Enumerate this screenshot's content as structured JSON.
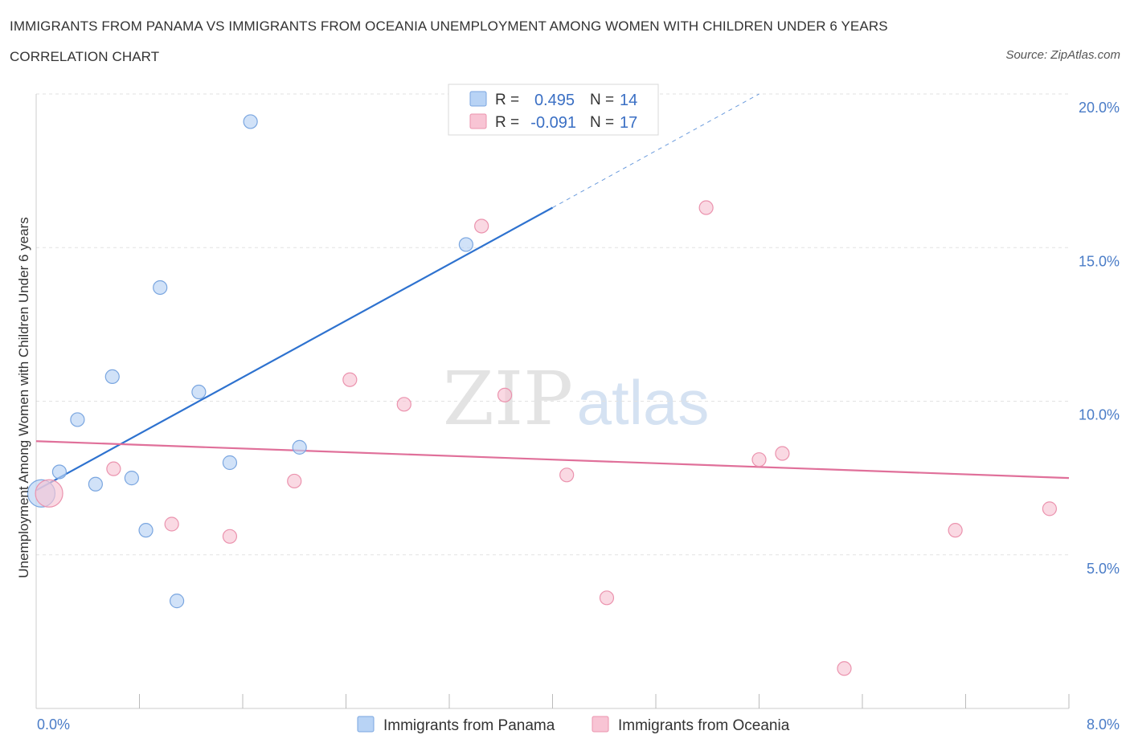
{
  "title": "IMMIGRANTS FROM PANAMA VS IMMIGRANTS FROM OCEANIA UNEMPLOYMENT AMONG WOMEN WITH CHILDREN UNDER 6 YEARS CORRELATION CHART",
  "source": "Source: ZipAtlas.com",
  "watermark": {
    "zip": "ZIP",
    "atlas": "atlas"
  },
  "colors": {
    "panama_fill": "#b8d3f5",
    "panama_stroke": "#7aa6e0",
    "panama_line": "#2e72cf",
    "oceania_fill": "#f8c4d4",
    "oceania_stroke": "#eb93ae",
    "oceania_line": "#e0709a"
  },
  "legend": {
    "r_label": "R =",
    "n_label": "N =",
    "panama": {
      "r": "0.495",
      "n": "14"
    },
    "oceania": {
      "r": "-0.091",
      "n": "17"
    }
  },
  "chart_data": {
    "type": "scatter",
    "title": "IMMIGRANTS FROM PANAMA VS IMMIGRANTS FROM OCEANIA UNEMPLOYMENT AMONG WOMEN WITH CHILDREN UNDER 6 YEARS CORRELATION CHART",
    "xlabel": "",
    "ylabel": "Unemployment Among Women with Children Under 6 years",
    "xlim": [
      0,
      8
    ],
    "ylim": [
      0,
      20
    ],
    "x_tick_labels": [
      "0.0%",
      "8.0%"
    ],
    "y_ticks": [
      5,
      10,
      15,
      20
    ],
    "y_tick_labels": [
      "5.0%",
      "10.0%",
      "15.0%",
      "20.0%"
    ],
    "grid": true,
    "legend_position": "top-center",
    "series": [
      {
        "name": "Immigrants from Panama",
        "r": 0.495,
        "n": 14,
        "points": [
          {
            "x": 0.04,
            "y": 7.0,
            "size": "large"
          },
          {
            "x": 0.18,
            "y": 7.7
          },
          {
            "x": 0.32,
            "y": 9.4
          },
          {
            "x": 0.46,
            "y": 7.3
          },
          {
            "x": 0.59,
            "y": 10.8
          },
          {
            "x": 0.74,
            "y": 7.5
          },
          {
            "x": 0.85,
            "y": 5.8
          },
          {
            "x": 0.96,
            "y": 13.7
          },
          {
            "x": 1.09,
            "y": 3.5
          },
          {
            "x": 1.26,
            "y": 10.3
          },
          {
            "x": 1.5,
            "y": 8.0
          },
          {
            "x": 1.66,
            "y": 19.1
          },
          {
            "x": 2.04,
            "y": 8.5
          },
          {
            "x": 3.33,
            "y": 15.1
          }
        ],
        "trend": {
          "x_start": 0.0,
          "y_start": 7.1,
          "x_solid_end": 4.0,
          "y_solid_end": 16.3,
          "x_dash_end": 5.6,
          "y_dash_end": 20.0
        }
      },
      {
        "name": "Immigrants from Oceania",
        "r": -0.091,
        "n": 17,
        "points": [
          {
            "x": 0.1,
            "y": 7.0,
            "size": "large"
          },
          {
            "x": 0.6,
            "y": 7.8
          },
          {
            "x": 1.05,
            "y": 6.0
          },
          {
            "x": 1.5,
            "y": 5.6
          },
          {
            "x": 2.0,
            "y": 7.4
          },
          {
            "x": 2.43,
            "y": 10.7
          },
          {
            "x": 2.85,
            "y": 9.9
          },
          {
            "x": 3.45,
            "y": 15.7
          },
          {
            "x": 3.63,
            "y": 10.2
          },
          {
            "x": 4.11,
            "y": 7.6
          },
          {
            "x": 4.42,
            "y": 3.6
          },
          {
            "x": 5.19,
            "y": 16.3
          },
          {
            "x": 5.6,
            "y": 8.1
          },
          {
            "x": 5.78,
            "y": 8.3
          },
          {
            "x": 6.26,
            "y": 1.3
          },
          {
            "x": 7.12,
            "y": 5.8
          },
          {
            "x": 7.85,
            "y": 6.5
          }
        ],
        "trend": {
          "x_start": 0.0,
          "y_start": 8.7,
          "x_end": 8.0,
          "y_end": 7.5
        }
      }
    ]
  }
}
